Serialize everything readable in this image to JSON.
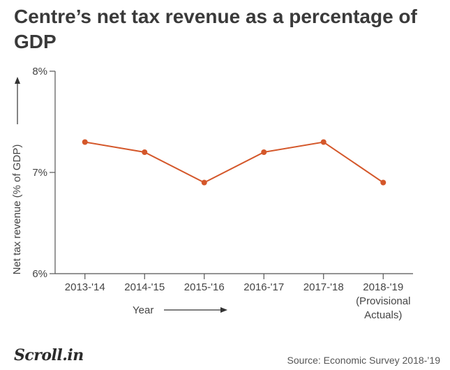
{
  "chart_data": {
    "type": "line",
    "title": "Centre’s net tax revenue as a percentage of GDP",
    "xlabel": "Year",
    "ylabel": "Net tax revenue (% of GDP)",
    "categories": [
      "2013-'14",
      "2014-'15",
      "2015-'16",
      "2016-'17",
      "2017-'18",
      "2018-'19 (Provisional Actuals)"
    ],
    "category_lines": [
      [
        "2013-'14"
      ],
      [
        "2014-'15"
      ],
      [
        "2015-'16"
      ],
      [
        "2016-'17"
      ],
      [
        "2017-'18"
      ],
      [
        "2018-'19",
        "(Provisional",
        "Actuals)"
      ]
    ],
    "series": [
      {
        "name": "Net tax revenue (% of GDP)",
        "values": [
          7.3,
          7.2,
          6.9,
          7.2,
          7.3,
          6.9
        ]
      }
    ],
    "ylim": [
      6,
      8
    ],
    "yticks": [
      6,
      7,
      8
    ],
    "ytick_labels": [
      "6%",
      "7%",
      "8%"
    ],
    "grid": false,
    "line_color": "#d4572a",
    "axis_color": "#555555"
  },
  "footer": {
    "logo": "Scroll.in",
    "source": "Source:  Economic Survey 2018-’19"
  }
}
